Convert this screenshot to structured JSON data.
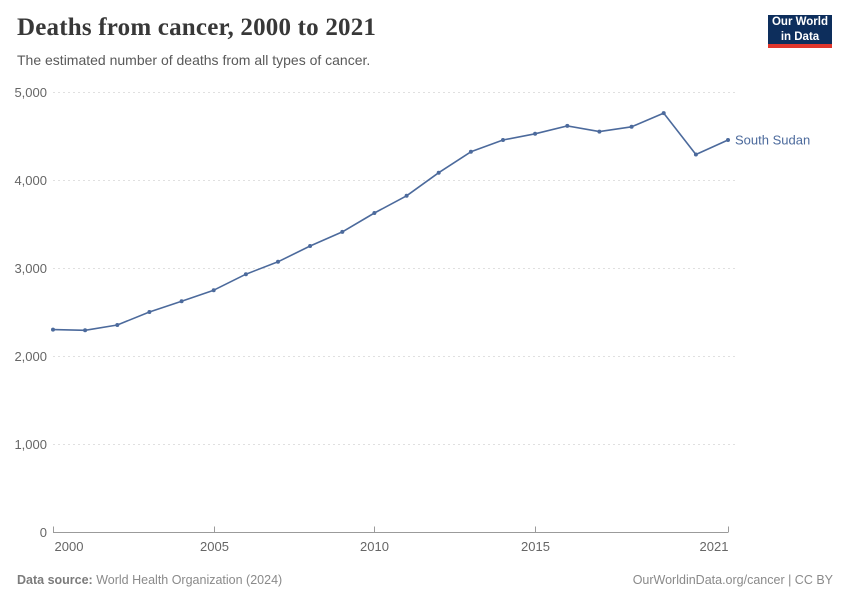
{
  "header": {
    "title": "Deaths from cancer, 2000 to 2021",
    "subtitle": "The estimated number of deaths from all types of cancer."
  },
  "logo": {
    "line1": "Our World",
    "line2": "in Data",
    "bg_color": "#0D2E5C",
    "bar_color": "#E0362C"
  },
  "footer": {
    "source_label": "Data source:",
    "source_text": "World Health Organization (2024)",
    "right": "OurWorldinData.org/cancer | CC BY"
  },
  "chart_data": {
    "type": "line",
    "title": "Deaths from cancer, 2000 to 2021",
    "xlabel": "",
    "ylabel": "",
    "xlim": [
      2000,
      2021
    ],
    "ylim": [
      0,
      5000
    ],
    "grid": true,
    "legend_position": "end-of-line",
    "grid_color": "#e0e0e0",
    "axis_color": "#9b9b9b",
    "xticks": [
      {
        "v": 2000,
        "label": "2000"
      },
      {
        "v": 2005,
        "label": "2005"
      },
      {
        "v": 2010,
        "label": "2010"
      },
      {
        "v": 2015,
        "label": "2015"
      },
      {
        "v": 2021,
        "label": "2021"
      }
    ],
    "yticks": [
      {
        "v": 0,
        "label": "0"
      },
      {
        "v": 1000,
        "label": "1,000"
      },
      {
        "v": 2000,
        "label": "2,000"
      },
      {
        "v": 3000,
        "label": "3,000"
      },
      {
        "v": 4000,
        "label": "4,000"
      },
      {
        "v": 5000,
        "label": "5,000"
      }
    ],
    "series": [
      {
        "name": "South Sudan",
        "color": "#4C6A9C",
        "x": [
          2000,
          2001,
          2002,
          2003,
          2004,
          2005,
          2006,
          2007,
          2008,
          2009,
          2010,
          2011,
          2012,
          2013,
          2014,
          2015,
          2016,
          2017,
          2018,
          2019,
          2020,
          2021
        ],
        "values": [
          2300,
          2292,
          2352,
          2500,
          2622,
          2748,
          2930,
          3070,
          3250,
          3410,
          3625,
          3820,
          4083,
          4321,
          4455,
          4525,
          4615,
          4550,
          4605,
          4760,
          4290,
          4455
        ]
      }
    ]
  }
}
